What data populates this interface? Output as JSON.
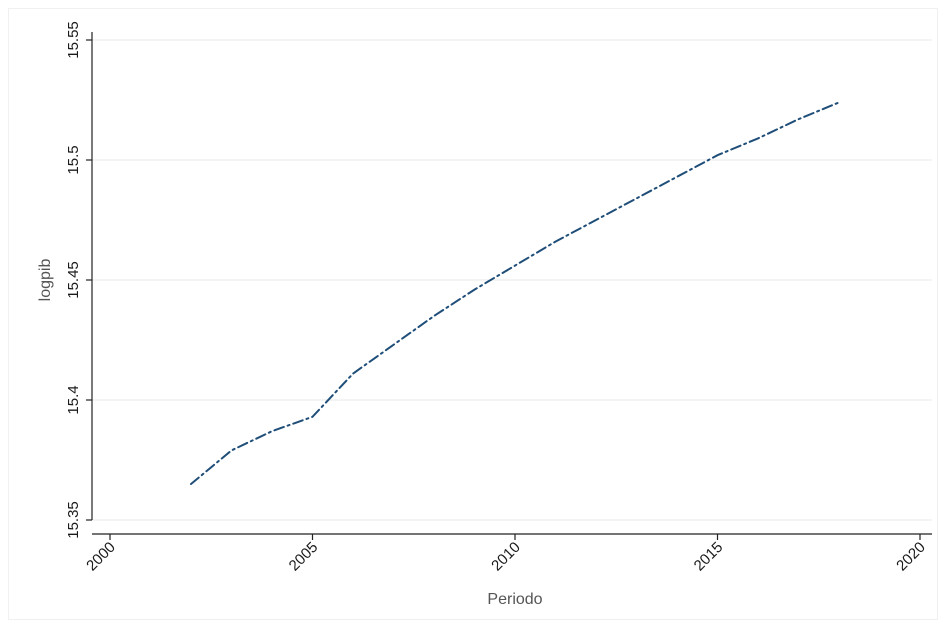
{
  "chart_data": {
    "type": "line",
    "title": "",
    "xlabel": "Periodo",
    "ylabel": "logpib",
    "xlim": [
      2000,
      2020
    ],
    "ylim": [
      15.35,
      15.55
    ],
    "x_ticks": [
      2000,
      2005,
      2010,
      2015,
      2020
    ],
    "y_ticks": [
      15.35,
      15.4,
      15.45,
      15.5,
      15.55
    ],
    "x_tick_labels": [
      "2000",
      "2005",
      "2010",
      "2015",
      "2020"
    ],
    "y_tick_labels": [
      "15.35",
      "15.4",
      "15.45",
      "15.5",
      "15.55"
    ],
    "grid": true,
    "legend": "none",
    "series": [
      {
        "x": [
          2002,
          2003,
          2004,
          2005,
          2006,
          2007,
          2008,
          2009,
          2010,
          2011,
          2012,
          2013,
          2014,
          2015,
          2016,
          2017,
          2018
        ],
        "values": [
          15.365,
          15.379,
          15.387,
          15.393,
          15.411,
          15.423,
          15.435,
          15.446,
          15.456,
          15.466,
          15.475,
          15.484,
          15.493,
          15.502,
          15.509,
          15.517,
          15.524
        ],
        "color": "#1f4e79",
        "line_style": "dash-dot"
      }
    ]
  }
}
